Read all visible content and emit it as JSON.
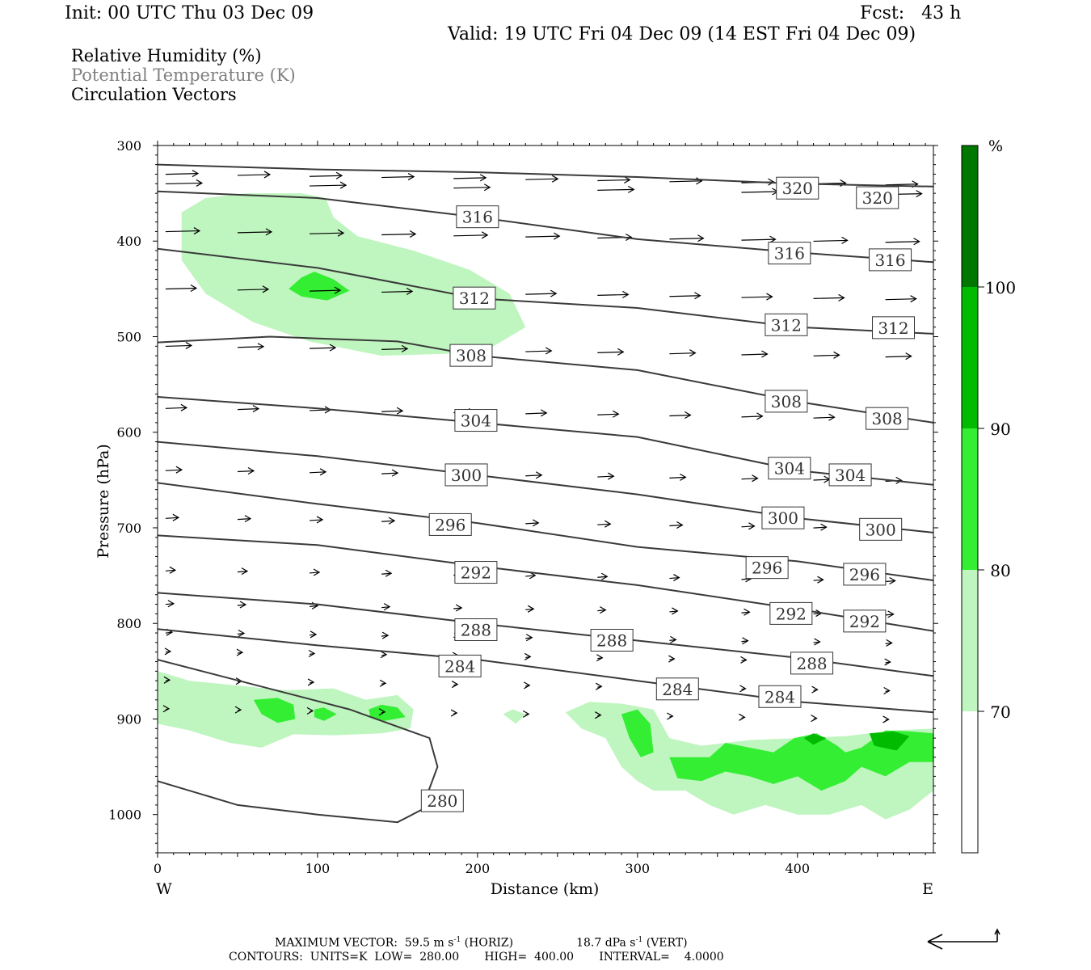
{
  "header": {
    "init": "Init: 00 UTC Thu 03 Dec 09",
    "fcst": "Fcst:   43 h",
    "valid": "Valid: 19 UTC Fri 04 Dec 09 (14 EST Fri 04 Dec 09)"
  },
  "fields": {
    "rh": "Relative Humidity (%)",
    "theta": "Potential Temperature (K)",
    "vectors": "Circulation Vectors"
  },
  "footer": {
    "max_vector_label": "MAXIMUM VECTOR:",
    "max_horiz": "59.5 m s",
    "horiz_tag": "(HORIZ)",
    "max_vert": "18.7 dPa s",
    "vert_tag": "(VERT)",
    "exp": "-1",
    "contours": "CONTOURS:  UNITS=K  LOW=  280.00       HIGH=  400.00       INTERVAL=    4.0000"
  },
  "colors": {
    "rh_70": "#bff5bf",
    "rh_80": "#33ee33",
    "rh_90": "#00bb00",
    "rh_100": "#007700",
    "contour": "#3a3a3a"
  },
  "chart_data": {
    "type": "cross-section",
    "xlabel": "Distance (km)",
    "ylabel": "Pressure (hPa)",
    "x_range": [
      0,
      485
    ],
    "y_range": [
      300,
      1040
    ],
    "y_inverted": true,
    "x_ticks": [
      0,
      100,
      200,
      300,
      400
    ],
    "y_ticks": [
      300,
      400,
      500,
      600,
      700,
      800,
      900,
      1000
    ],
    "x_end_labels": {
      "left": "W",
      "right": "E"
    },
    "colorbar": {
      "unit": "%",
      "levels": [
        70,
        80,
        90,
        100
      ],
      "level_labels": [
        "70",
        "80",
        "90",
        "100"
      ]
    },
    "isentropes": [
      {
        "theta": 320,
        "points": [
          [
            0,
            320
          ],
          [
            100,
            325
          ],
          [
            200,
            328
          ],
          [
            300,
            333
          ],
          [
            400,
            340
          ],
          [
            485,
            343
          ]
        ],
        "labels": [
          [
            400,
            345
          ],
          [
            450,
            355
          ]
        ]
      },
      {
        "theta": 316,
        "points": [
          [
            0,
            348
          ],
          [
            100,
            355
          ],
          [
            200,
            375
          ],
          [
            300,
            398
          ],
          [
            400,
            412
          ],
          [
            485,
            422
          ]
        ],
        "labels": [
          [
            200,
            375
          ],
          [
            395,
            413
          ],
          [
            458,
            420
          ]
        ]
      },
      {
        "theta": 312,
        "points": [
          [
            0,
            408
          ],
          [
            100,
            428
          ],
          [
            200,
            460
          ],
          [
            300,
            470
          ],
          [
            400,
            490
          ],
          [
            485,
            497
          ]
        ],
        "labels": [
          [
            198,
            460
          ],
          [
            393,
            488
          ],
          [
            460,
            491
          ]
        ]
      },
      {
        "theta": 308,
        "points": [
          [
            0,
            506
          ],
          [
            70,
            500
          ],
          [
            150,
            505
          ],
          [
            200,
            520
          ],
          [
            300,
            535
          ],
          [
            400,
            568
          ],
          [
            485,
            590
          ]
        ],
        "labels": [
          [
            196,
            520
          ],
          [
            393,
            568
          ],
          [
            456,
            586
          ]
        ]
      },
      {
        "theta": 304,
        "points": [
          [
            0,
            563
          ],
          [
            100,
            575
          ],
          [
            200,
            590
          ],
          [
            300,
            605
          ],
          [
            400,
            640
          ],
          [
            485,
            655
          ]
        ],
        "labels": [
          [
            199,
            588
          ],
          [
            395,
            638
          ],
          [
            433,
            645
          ]
        ]
      },
      {
        "theta": 300,
        "points": [
          [
            0,
            610
          ],
          [
            100,
            625
          ],
          [
            200,
            645
          ],
          [
            300,
            665
          ],
          [
            400,
            690
          ],
          [
            485,
            705
          ]
        ],
        "labels": [
          [
            193,
            645
          ],
          [
            391,
            690
          ],
          [
            452,
            702
          ]
        ]
      },
      {
        "theta": 296,
        "points": [
          [
            0,
            653
          ],
          [
            100,
            675
          ],
          [
            200,
            695
          ],
          [
            300,
            720
          ],
          [
            400,
            735
          ],
          [
            485,
            755
          ]
        ],
        "labels": [
          [
            183,
            697
          ],
          [
            381,
            742
          ],
          [
            442,
            749
          ]
        ]
      },
      {
        "theta": 292,
        "points": [
          [
            0,
            708
          ],
          [
            100,
            718
          ],
          [
            200,
            740
          ],
          [
            300,
            760
          ],
          [
            400,
            785
          ],
          [
            485,
            808
          ]
        ],
        "labels": [
          [
            199,
            747
          ],
          [
            396,
            790
          ],
          [
            442,
            798
          ]
        ]
      },
      {
        "theta": 288,
        "points": [
          [
            0,
            768
          ],
          [
            100,
            780
          ],
          [
            200,
            800
          ],
          [
            300,
            818
          ],
          [
            400,
            836
          ],
          [
            485,
            855
          ]
        ],
        "labels": [
          [
            199,
            807
          ],
          [
            284,
            818
          ],
          [
            409,
            842
          ]
        ]
      },
      {
        "theta": 284,
        "points": [
          [
            0,
            806
          ],
          [
            100,
            823
          ],
          [
            200,
            838
          ],
          [
            300,
            860
          ],
          [
            400,
            882
          ],
          [
            485,
            893
          ]
        ],
        "labels": [
          [
            189,
            845
          ],
          [
            325,
            869
          ],
          [
            389,
            877
          ]
        ]
      },
      {
        "theta": 280,
        "points": [
          [
            0,
            838
          ],
          [
            120,
            890
          ],
          [
            170,
            920
          ],
          [
            175,
            950
          ],
          [
            165,
            995
          ],
          [
            150,
            1008
          ],
          [
            100,
            1000
          ],
          [
            50,
            990
          ],
          [
            0,
            965
          ]
        ],
        "labels": [
          [
            178,
            986
          ]
        ]
      }
    ],
    "rh_regions": [
      {
        "level": 70,
        "area": "upper moist tongue, ~15-230 km, 350-530 hPa"
      },
      {
        "level": 80,
        "area": "~85-120 km near 450 hPa"
      },
      {
        "level": 70,
        "area": "lower-left moist layer, 0-160 km, 850-930 hPa"
      },
      {
        "level": 80,
        "area": "cells near 60-150 km, 880-900 hPa"
      },
      {
        "level": 70,
        "area": "lower-right moist layer, 255-485 km, 880-1000 hPa"
      },
      {
        "level": 80,
        "area": "lower-right band, 290-485 km, 900-960 hPa"
      },
      {
        "level": 90,
        "area": "small cells near 410 km and 455 km, ~920 hPa"
      }
    ],
    "vector_summary": "westerly circulation vectors, strongest aloft (300-450 hPa), weakening toward the surface"
  }
}
